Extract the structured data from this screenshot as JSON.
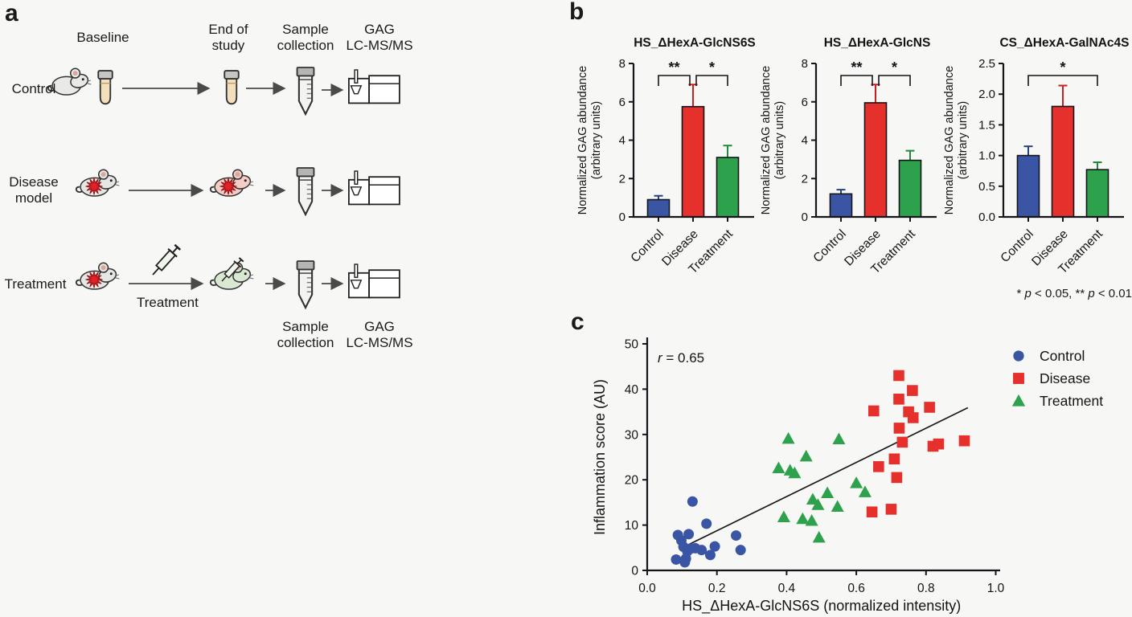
{
  "figure": {
    "panel_labels": {
      "a": "a",
      "b": "b",
      "c": "c"
    }
  },
  "colors": {
    "background": "#f7f7f5",
    "axis": "#141414",
    "control_blue": "#3b55a5",
    "disease_red": "#e5302c",
    "treatment_green": "#2ea14c",
    "error_blue": "#2a3f80",
    "error_red": "#c8201f",
    "error_green": "#1e8a3c",
    "mouse_gray": "#e9e9e7",
    "mouse_pink": "#f3cdc6",
    "mouse_green": "#d9e8d2",
    "starburst_red": "#e02127",
    "tube_beige": "#f4dfbc",
    "cap_gray": "#c0c0be",
    "trend_line": "#1a1a1a"
  },
  "workflow": {
    "headers": [
      "Baseline",
      "End of\nstudy",
      "Sample\ncollection",
      "GAG\nLC-MS/MS"
    ],
    "row_labels": [
      "Control",
      "Disease\nmodel",
      "Treatment"
    ],
    "arrow_label": "Treatment",
    "footer_labels": [
      "Sample\ncollection",
      "GAG\nLC-MS/MS"
    ],
    "icons": {
      "mouse": "mouse-icon",
      "microtube": "microtube-icon",
      "falcon_tube": "falcon-tube-icon",
      "syringe": "syringe-icon",
      "lcms": "lcms-instrument-icon",
      "arrow": "flow-arrow"
    }
  },
  "significance_note": {
    "parts": [
      "* ",
      "p",
      " < 0.05, ** ",
      "p",
      " < 0.01"
    ]
  },
  "chart_data": [
    {
      "type": "bar",
      "title": "HS_ΔHexA-GlcNS6S",
      "ylabel_lines": [
        "Normalized GAG abundance",
        "(arbitrary units)"
      ],
      "categories": [
        "Control",
        "Disease",
        "Treatment"
      ],
      "values": [
        0.9,
        5.75,
        3.1
      ],
      "errors": [
        0.2,
        1.15,
        0.62
      ],
      "ylim": [
        0,
        8
      ],
      "yticks": [
        0,
        2,
        4,
        6,
        8
      ],
      "ytick_labels": [
        "0",
        "2",
        "4",
        "6",
        "8"
      ],
      "significance": [
        {
          "from": 0,
          "to": 1,
          "label": "**"
        },
        {
          "from": 1,
          "to": 2,
          "label": "*"
        }
      ]
    },
    {
      "type": "bar",
      "title": "HS_ΔHexA-GlcNS",
      "ylabel_lines": [
        "Normalized GAG abundance",
        "(arbitrary units)"
      ],
      "categories": [
        "Control",
        "Disease",
        "Treatment"
      ],
      "values": [
        1.2,
        5.95,
        2.95
      ],
      "errors": [
        0.22,
        0.95,
        0.5
      ],
      "ylim": [
        0,
        8
      ],
      "yticks": [
        0,
        2,
        4,
        6,
        8
      ],
      "ytick_labels": [
        "0",
        "2",
        "4",
        "6",
        "8"
      ],
      "significance": [
        {
          "from": 0,
          "to": 1,
          "label": "**"
        },
        {
          "from": 1,
          "to": 2,
          "label": "*"
        }
      ]
    },
    {
      "type": "bar",
      "title": "CS_ΔHexA-GalNAc4S",
      "ylabel_lines": [
        "Normalized GAG abundance",
        "(arbitrary units)"
      ],
      "categories": [
        "Control",
        "Disease",
        "Treatment"
      ],
      "values": [
        1.0,
        1.8,
        0.77
      ],
      "errors": [
        0.15,
        0.34,
        0.12
      ],
      "ylim": [
        0,
        2.5
      ],
      "yticks": [
        0,
        0.5,
        1.0,
        1.5,
        2.0,
        2.5
      ],
      "ytick_labels": [
        "0.0",
        "0.5",
        "1.0",
        "1.5",
        "2.0",
        "2.5"
      ],
      "significance": [
        {
          "from": 0,
          "to": 2,
          "label": "*"
        }
      ]
    },
    {
      "type": "scatter",
      "xlabel": "HS_ΔHexA-GlcNS6S (normalized intensity)",
      "ylabel": "Inflammation score (AU)",
      "xlim": [
        0.0,
        1.0
      ],
      "ylim": [
        0,
        50
      ],
      "xticks": [
        "0.0",
        "0.2",
        "0.4",
        "0.6",
        "0.8",
        "1.0"
      ],
      "yticks": [
        0,
        10,
        20,
        30,
        40,
        50
      ],
      "annotation": {
        "parts": [
          "r",
          " = 0.65"
        ]
      },
      "trend_line": {
        "x1": 0.095,
        "y1": 4.8,
        "x2": 0.92,
        "y2": 35.9
      },
      "legend_position": "right",
      "series": [
        {
          "name": "Control",
          "marker": "circle",
          "color": "#3b55a5",
          "points": [
            [
              0.13,
              15.2
            ],
            [
              0.17,
              10.3
            ],
            [
              0.088,
              7.8
            ],
            [
              0.119,
              8.0
            ],
            [
              0.098,
              6.6
            ],
            [
              0.104,
              5.2
            ],
            [
              0.115,
              4.2
            ],
            [
              0.125,
              4.8
            ],
            [
              0.138,
              4.9
            ],
            [
              0.156,
              4.5
            ],
            [
              0.194,
              5.3
            ],
            [
              0.181,
              3.4
            ],
            [
              0.111,
              2.6
            ],
            [
              0.083,
              2.4
            ],
            [
              0.108,
              1.8
            ],
            [
              0.255,
              7.7
            ],
            [
              0.268,
              4.5
            ]
          ]
        },
        {
          "name": "Disease",
          "marker": "square",
          "color": "#e5302c",
          "points": [
            [
              0.722,
              43.0
            ],
            [
              0.761,
              39.7
            ],
            [
              0.722,
              37.8
            ],
            [
              0.65,
              35.2
            ],
            [
              0.75,
              35.0
            ],
            [
              0.763,
              33.7
            ],
            [
              0.81,
              36.0
            ],
            [
              0.723,
              31.4
            ],
            [
              0.732,
              28.3
            ],
            [
              0.91,
              28.6
            ],
            [
              0.82,
              27.4
            ],
            [
              0.836,
              27.9
            ],
            [
              0.709,
              24.6
            ],
            [
              0.664,
              22.9
            ],
            [
              0.716,
              20.5
            ],
            [
              0.645,
              12.9
            ],
            [
              0.7,
              13.5
            ]
          ]
        },
        {
          "name": "Treatment",
          "marker": "triangle",
          "color": "#2ea14c",
          "points": [
            [
              0.405,
              29.1
            ],
            [
              0.55,
              29.0
            ],
            [
              0.456,
              25.2
            ],
            [
              0.377,
              22.6
            ],
            [
              0.41,
              22.1
            ],
            [
              0.423,
              21.5
            ],
            [
              0.6,
              19.3
            ],
            [
              0.625,
              17.3
            ],
            [
              0.517,
              17.1
            ],
            [
              0.475,
              15.7
            ],
            [
              0.49,
              14.5
            ],
            [
              0.546,
              14.1
            ],
            [
              0.392,
              11.8
            ],
            [
              0.446,
              11.4
            ],
            [
              0.472,
              11.0
            ],
            [
              0.493,
              7.3
            ]
          ]
        }
      ]
    }
  ]
}
